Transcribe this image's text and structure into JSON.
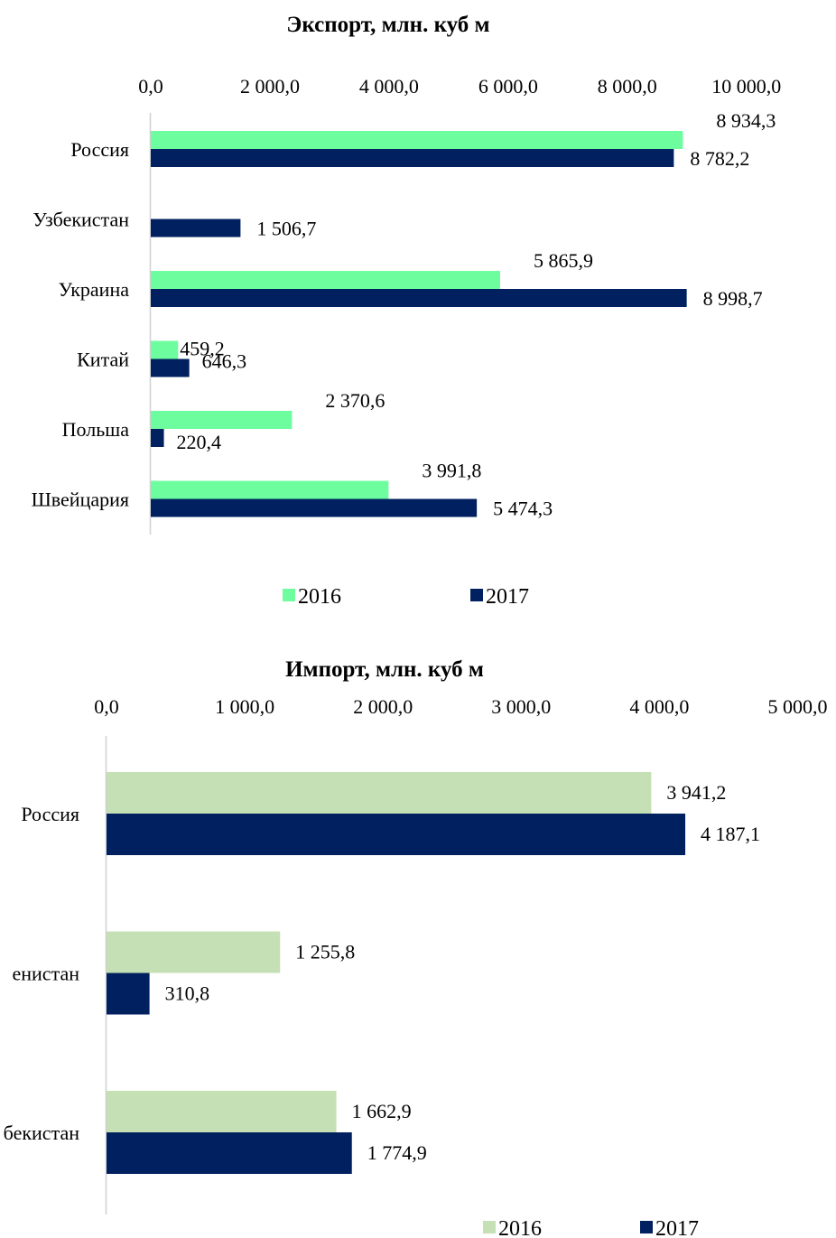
{
  "colors": {
    "export_2016": "#6dfc9e",
    "export_2017": "#002060",
    "import_2016": "#c5e0b4",
    "import_2017": "#002060",
    "axis": "#d0d0d0"
  },
  "chart_data": [
    {
      "type": "bar",
      "orientation": "horizontal",
      "title": "Экспорт, млн. куб м",
      "categories": [
        "Россия",
        "Узбекистан",
        "Украина",
        "Китай",
        "Польша",
        "Швейцария"
      ],
      "series": [
        {
          "name": "2016",
          "values": [
            8934.3,
            null,
            5865.9,
            459.2,
            2370.6,
            3991.8
          ],
          "labels": [
            "8 934,3",
            "",
            "5 865,9",
            "459,2",
            "2 370,6",
            "3 991,8"
          ]
        },
        {
          "name": "2017",
          "values": [
            8782.2,
            1506.7,
            8998.7,
            646.3,
            220.4,
            5474.3
          ],
          "labels": [
            "8 782,2",
            "1 506,7",
            "8 998,7",
            "646,3",
            "220,4",
            "5 474,3"
          ]
        }
      ],
      "xlim": [
        0,
        10000
      ],
      "ticks": [
        0,
        2000,
        4000,
        6000,
        8000,
        10000
      ],
      "tick_labels": [
        "0,0",
        "2 000,0",
        "4 000,0",
        "6 000,0",
        "8 000,0",
        "10 000,0"
      ],
      "axis_position": "top",
      "legend": "bottom",
      "grid": false
    },
    {
      "type": "bar",
      "orientation": "horizontal",
      "title": "Импорт, млн. куб м",
      "categories": [
        "Россия",
        "енистан",
        "бекистан"
      ],
      "series": [
        {
          "name": "2016",
          "values": [
            3941.2,
            1255.8,
            1662.9
          ],
          "labels": [
            "3 941,2",
            "1 255,8",
            "1 662,9"
          ]
        },
        {
          "name": "2017",
          "values": [
            4187.1,
            310.8,
            1774.9
          ],
          "labels": [
            "4 187,1",
            "310,8",
            "1 774,9"
          ]
        }
      ],
      "xlim": [
        0,
        5000
      ],
      "ticks": [
        0,
        1000,
        2000,
        3000,
        4000,
        5000
      ],
      "tick_labels": [
        "0,0",
        "1 000,0",
        "2 000,0",
        "3 000,0",
        "4 000,0",
        "5 000,0"
      ],
      "axis_position": "top",
      "legend": "bottom",
      "grid": false
    }
  ]
}
